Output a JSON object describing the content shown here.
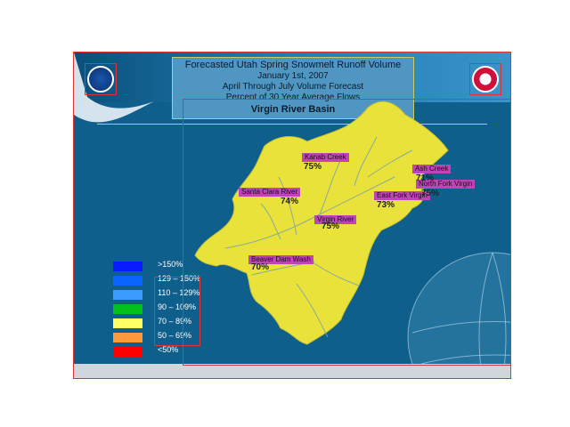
{
  "title": {
    "line1": "Forecasted Utah Spring Snowmelt Runoff Volume",
    "line2": "January 1st, 2007",
    "line3": "April Through July Volume Forecast",
    "line4": "Percent of 30 Year Average Flows",
    "line5": "Virgin River Basin"
  },
  "logos": {
    "left": "noaa-logo-icon",
    "right": "nws-logo-icon"
  },
  "map": {
    "basin_color": "#e9e23a",
    "river_color": "#7fa4a3",
    "water_color": "#0f5f8c",
    "labels": [
      {
        "name": "Kanab Creek",
        "pct": "75%"
      },
      {
        "name": "Santa Clara River",
        "pct": "74%"
      },
      {
        "name": "East Fork Virgin",
        "pct": "73%"
      },
      {
        "name": "North Fork Virgin",
        "pct": "75%"
      },
      {
        "name": "Virgin River",
        "pct": "75%"
      },
      {
        "name": "Ash Creek",
        "pct": "71%"
      },
      {
        "name": "Beaver Dam Wash",
        "pct": "70%"
      }
    ]
  },
  "legend": [
    {
      "range": ">150%",
      "color": "#0a1cff"
    },
    {
      "range": "129 – 150%",
      "color": "#0a64ff"
    },
    {
      "range": "110 – 129%",
      "color": "#3b9bff"
    },
    {
      "range": "90 – 109%",
      "color": "#00c21a"
    },
    {
      "range": "70 – 89%",
      "color": "#ffff66"
    },
    {
      "range": "50 – 69%",
      "color": "#ff9a3c"
    },
    {
      "range": "<50%",
      "color": "#ff0000"
    }
  ]
}
